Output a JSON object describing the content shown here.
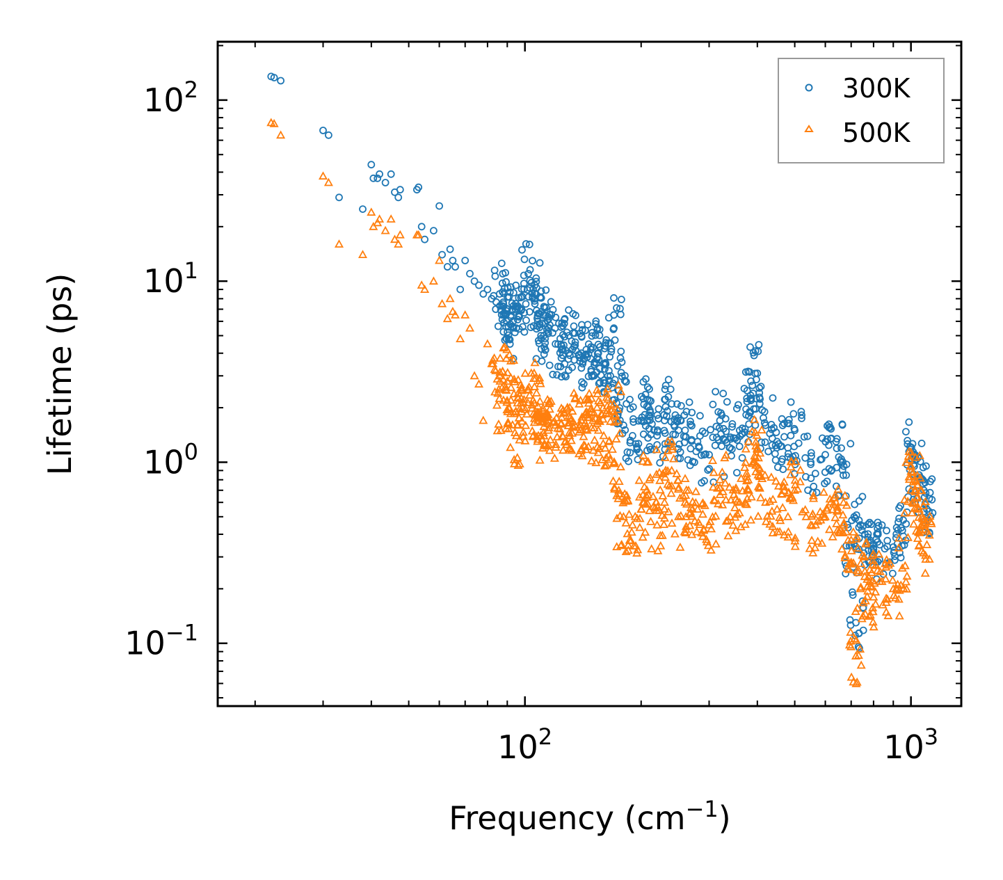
{
  "chart_data": {
    "type": "scatter",
    "xscale": "log",
    "yscale": "log",
    "xlim": [
      16,
      1350
    ],
    "ylim": [
      0.045,
      210
    ],
    "xlabel": "Frequency (cm",
    "xlabel_sup": "−1",
    "xlabel_end": ")",
    "ylabel": "Lifetime (ps)",
    "xticks": [
      {
        "value": 100,
        "base": "10",
        "exp": "2"
      },
      {
        "value": 1000,
        "base": "10",
        "exp": "3"
      }
    ],
    "yticks": [
      {
        "value": 100,
        "base": "10",
        "exp": "2"
      },
      {
        "value": 10,
        "base": "10",
        "exp": "1"
      },
      {
        "value": 1,
        "base": "10",
        "exp": "0"
      },
      {
        "value": 0.1,
        "base": "10",
        "exp": "−1"
      }
    ],
    "legend": {
      "position": "top-right"
    },
    "series": [
      {
        "name": "300K",
        "marker": "circle",
        "color": "#1f77b4",
        "x": [
          22,
          22.4,
          23.3,
          30,
          31,
          33,
          38,
          40,
          40.5,
          41.5,
          42,
          43.5,
          45,
          46,
          47,
          47.5,
          52.5,
          53,
          54,
          55,
          58,
          60,
          61,
          63,
          64,
          65,
          66,
          68,
          70,
          72,
          74,
          76,
          78,
          80,
          82,
          84,
          86,
          88,
          90,
          92,
          95,
          98,
          102,
          105,
          108,
          110,
          112,
          115,
          120,
          125,
          130,
          135,
          140,
          145,
          150,
          155,
          160,
          165,
          170,
          175,
          180,
          190,
          200,
          210,
          220,
          230,
          240,
          250,
          260,
          280,
          300,
          320,
          340,
          360,
          380,
          390,
          400,
          420,
          450,
          480,
          500,
          550,
          600,
          640,
          670,
          700,
          720,
          740,
          760,
          800,
          830,
          900,
          950,
          1000,
          1020,
          1050,
          1080,
          1100
        ],
        "y": [
          135,
          133,
          128,
          68,
          64,
          29,
          25,
          44,
          37,
          37,
          39,
          35,
          39,
          31,
          29,
          32,
          32,
          33,
          20,
          17,
          19,
          26,
          14,
          12,
          15,
          13,
          12,
          9,
          13,
          11,
          10,
          9.5,
          8.5,
          9,
          8,
          7,
          8.5,
          6.5,
          7,
          6.5,
          5.5,
          7,
          11,
          9,
          6,
          5,
          6.5,
          5.5,
          4.5,
          4.2,
          5,
          4.6,
          4.0,
          3.8,
          4.3,
          4.0,
          3.5,
          3.2,
          5.5,
          2.5,
          1.6,
          1.4,
          1.7,
          2.2,
          1.4,
          1.7,
          2.1,
          1.5,
          1.5,
          1.3,
          1.1,
          1.7,
          1.2,
          1.5,
          1.8,
          2.4,
          3.1,
          1.6,
          1.3,
          1.2,
          1.5,
          1.0,
          1.1,
          1.3,
          0.95,
          0.35,
          0.13,
          0.45,
          0.4,
          0.33,
          0.35,
          0.34,
          0.42,
          1.2,
          0.95,
          0.85,
          0.7,
          0.55
        ]
      },
      {
        "name": "500K",
        "marker": "triangle",
        "color": "#ff7f0e",
        "x": [
          22,
          22.4,
          23.3,
          30,
          31,
          33,
          38,
          40,
          40.5,
          41.5,
          42,
          43.5,
          45,
          46,
          47,
          47.5,
          52.5,
          53,
          54,
          55,
          58,
          60,
          61,
          63,
          64,
          65,
          66,
          68,
          70,
          72,
          74,
          76,
          78,
          80,
          82,
          84,
          86,
          88,
          90,
          92,
          95,
          98,
          102,
          105,
          108,
          110,
          112,
          115,
          120,
          125,
          130,
          135,
          140,
          145,
          150,
          155,
          160,
          165,
          170,
          175,
          180,
          190,
          200,
          210,
          220,
          230,
          240,
          250,
          260,
          280,
          300,
          320,
          340,
          360,
          380,
          390,
          400,
          420,
          450,
          480,
          500,
          550,
          600,
          640,
          670,
          700,
          720,
          740,
          760,
          800,
          830,
          900,
          950,
          1000,
          1020,
          1050,
          1080,
          1100
        ],
        "y": [
          75,
          74,
          64,
          38,
          35,
          16,
          14,
          24,
          20,
          21,
          22,
          19,
          22,
          17,
          16,
          18,
          18,
          18,
          9.5,
          9,
          10,
          13,
          7.5,
          6.2,
          8,
          6.8,
          6.5,
          4.8,
          6.5,
          5.5,
          3,
          2.7,
          1.7,
          4.5,
          3.5,
          3.2,
          3,
          2.2,
          2.8,
          2.2,
          1.4,
          1.9,
          2.5,
          2.2,
          1.7,
          1.4,
          1.8,
          1.5,
          1.6,
          1.4,
          1.8,
          1.6,
          1.7,
          1.5,
          1.7,
          1.5,
          1.4,
          1.3,
          1.9,
          0.7,
          0.5,
          0.45,
          0.55,
          0.8,
          0.45,
          0.6,
          0.9,
          0.5,
          0.6,
          0.55,
          0.45,
          0.8,
          0.5,
          0.6,
          0.7,
          1.0,
          1.2,
          0.6,
          0.55,
          0.5,
          0.7,
          0.45,
          0.5,
          0.6,
          0.45,
          0.28,
          0.085,
          0.2,
          0.25,
          0.18,
          0.22,
          0.2,
          0.26,
          0.7,
          0.8,
          0.55,
          0.45,
          0.35
        ]
      }
    ]
  }
}
